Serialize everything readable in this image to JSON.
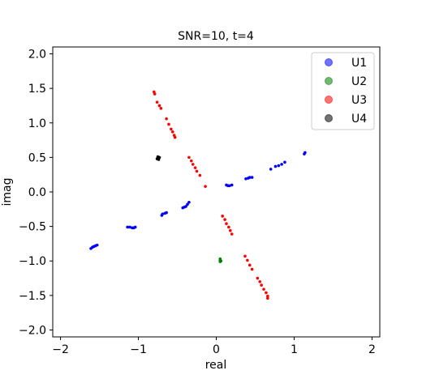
{
  "chart_data": {
    "type": "scatter",
    "title": "SNR=10, t=4",
    "xlabel": "real",
    "ylabel": "imag",
    "xlim": [
      -2.1,
      2.1
    ],
    "ylim": [
      -2.1,
      2.1
    ],
    "xticks": [
      -2,
      -1,
      0,
      1,
      2
    ],
    "yticks": [
      -2.0,
      -1.5,
      -1.0,
      -0.5,
      0.0,
      0.5,
      1.0,
      1.5,
      2.0
    ],
    "xtick_labels": [
      "−2",
      "−1",
      "0",
      "1",
      "2"
    ],
    "ytick_labels": [
      "−2.0",
      "−1.5",
      "−1.0",
      "−0.5",
      "0.0",
      "0.5",
      "1.0",
      "1.5",
      "2.0"
    ],
    "grid": false,
    "legend_position": "top-right",
    "series": [
      {
        "name": "U1",
        "color": "#0000ff",
        "points": [
          [
            -1.61,
            -0.82
          ],
          [
            -1.59,
            -0.8
          ],
          [
            -1.57,
            -0.79
          ],
          [
            -1.55,
            -0.78
          ],
          [
            -1.53,
            -0.77
          ],
          [
            -1.14,
            -0.51
          ],
          [
            -1.11,
            -0.51
          ],
          [
            -1.08,
            -0.52
          ],
          [
            -1.06,
            -0.52
          ],
          [
            -1.04,
            -0.51
          ],
          [
            -0.7,
            -0.34
          ],
          [
            -0.69,
            -0.32
          ],
          [
            -0.66,
            -0.31
          ],
          [
            -0.64,
            -0.3
          ],
          [
            -0.43,
            -0.23
          ],
          [
            -0.41,
            -0.22
          ],
          [
            -0.39,
            -0.21
          ],
          [
            -0.37,
            -0.18
          ],
          [
            -0.35,
            -0.15
          ],
          [
            0.13,
            0.1
          ],
          [
            0.15,
            0.09
          ],
          [
            0.17,
            0.09
          ],
          [
            0.2,
            0.1
          ],
          [
            0.38,
            0.19
          ],
          [
            0.41,
            0.2
          ],
          [
            0.43,
            0.21
          ],
          [
            0.46,
            0.21
          ],
          [
            0.7,
            0.33
          ],
          [
            0.76,
            0.37
          ],
          [
            0.8,
            0.38
          ],
          [
            0.84,
            0.4
          ],
          [
            0.88,
            0.43
          ],
          [
            1.13,
            0.55
          ],
          [
            1.14,
            0.57
          ]
        ]
      },
      {
        "name": "U2",
        "color": "#008000",
        "points": [
          [
            0.05,
            -0.97
          ],
          [
            0.05,
            -0.99
          ],
          [
            0.06,
            -1.0
          ],
          [
            0.05,
            -1.01
          ]
        ]
      },
      {
        "name": "U3",
        "color": "#ff0000",
        "points": [
          [
            -0.8,
            1.45
          ],
          [
            -0.79,
            1.42
          ],
          [
            -0.76,
            1.3
          ],
          [
            -0.73,
            1.25
          ],
          [
            -0.71,
            1.21
          ],
          [
            -0.64,
            1.06
          ],
          [
            -0.61,
            0.98
          ],
          [
            -0.58,
            0.91
          ],
          [
            -0.56,
            0.87
          ],
          [
            -0.54,
            0.82
          ],
          [
            -0.53,
            0.79
          ],
          [
            -0.35,
            0.5
          ],
          [
            -0.32,
            0.45
          ],
          [
            -0.3,
            0.4
          ],
          [
            -0.27,
            0.35
          ],
          [
            -0.25,
            0.3
          ],
          [
            -0.21,
            0.24
          ],
          [
            -0.14,
            0.08
          ],
          [
            0.08,
            -0.35
          ],
          [
            0.11,
            -0.4
          ],
          [
            0.13,
            -0.46
          ],
          [
            0.16,
            -0.51
          ],
          [
            0.18,
            -0.56
          ],
          [
            0.2,
            -0.61
          ],
          [
            0.37,
            -0.93
          ],
          [
            0.4,
            -0.99
          ],
          [
            0.43,
            -1.06
          ],
          [
            0.46,
            -1.12
          ],
          [
            0.53,
            -1.25
          ],
          [
            0.56,
            -1.3
          ],
          [
            0.58,
            -1.35
          ],
          [
            0.61,
            -1.41
          ],
          [
            0.64,
            -1.46
          ],
          [
            0.66,
            -1.51
          ],
          [
            0.66,
            -1.54
          ]
        ]
      },
      {
        "name": "U4",
        "color": "#000000",
        "points": [
          [
            -0.76,
            0.48
          ],
          [
            -0.74,
            0.49
          ],
          [
            -0.75,
            0.51
          ],
          [
            -0.73,
            0.5
          ],
          [
            -0.74,
            0.47
          ]
        ]
      }
    ]
  }
}
